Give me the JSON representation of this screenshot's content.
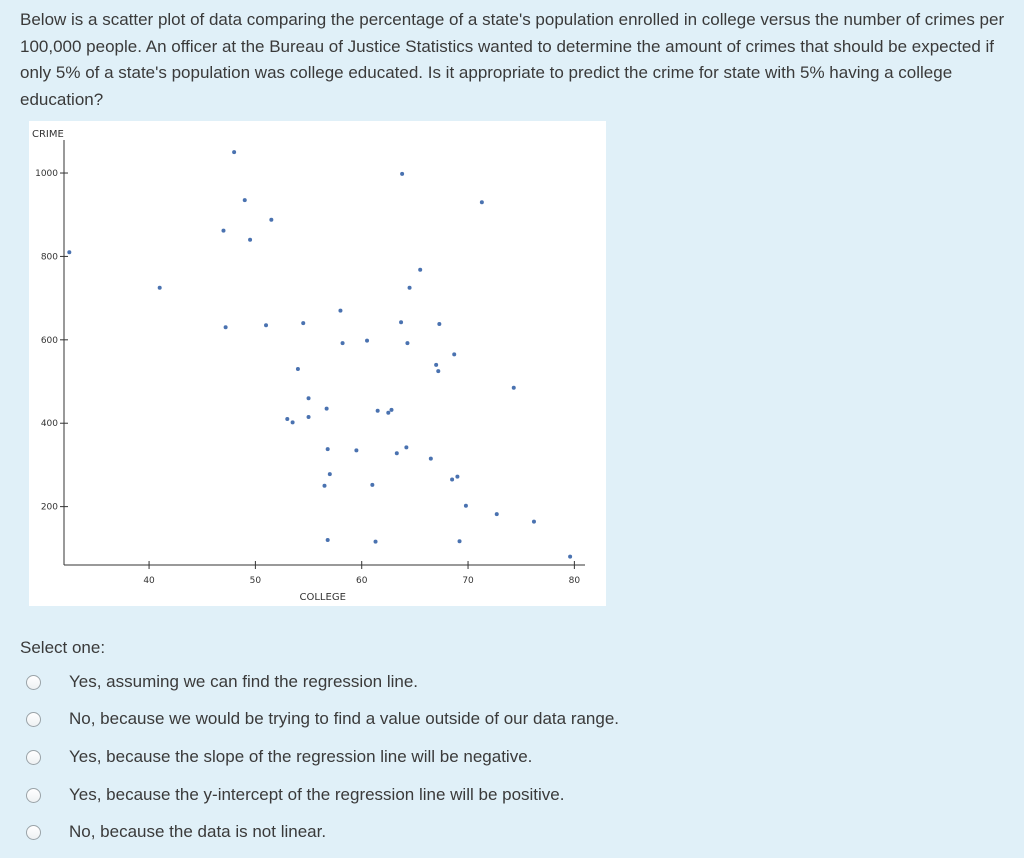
{
  "question": {
    "text": "Below is a scatter plot of data comparing the percentage of a state's population enrolled in college versus the number of crimes per 100,000 people. An officer at the Bureau of Justice Statistics wanted to determine the amount of crimes that should be expected if only 5% of a state's population was college educated. Is it appropriate to predict the crime for state with 5% having a college education?"
  },
  "chart_data": {
    "type": "scatter",
    "xlabel": "COLLEGE",
    "ylabel": "CRIME",
    "xlim": [
      32,
      81
    ],
    "ylim": [
      60,
      1060
    ],
    "x_ticks": [
      40,
      50,
      60,
      70,
      80
    ],
    "y_ticks": [
      200,
      400,
      600,
      800,
      1000
    ],
    "grid": false,
    "point_color": "#4a72b0",
    "points": [
      [
        32.5,
        810
      ],
      [
        41,
        725
      ],
      [
        47,
        862
      ],
      [
        47.2,
        630
      ],
      [
        48,
        1050
      ],
      [
        49,
        935
      ],
      [
        49.5,
        840
      ],
      [
        51,
        635
      ],
      [
        51.5,
        888
      ],
      [
        53,
        410
      ],
      [
        53.5,
        402
      ],
      [
        54,
        530
      ],
      [
        54.5,
        640
      ],
      [
        55,
        460
      ],
      [
        55,
        415
      ],
      [
        56.5,
        250
      ],
      [
        56.7,
        435
      ],
      [
        56.8,
        338
      ],
      [
        56.8,
        120
      ],
      [
        57,
        278
      ],
      [
        58,
        670
      ],
      [
        58.2,
        592
      ],
      [
        59.5,
        335
      ],
      [
        60.5,
        598
      ],
      [
        61,
        252
      ],
      [
        61.3,
        116
      ],
      [
        61.5,
        430
      ],
      [
        62.5,
        425
      ],
      [
        62.8,
        432
      ],
      [
        63.3,
        328
      ],
      [
        63.7,
        642
      ],
      [
        63.8,
        998
      ],
      [
        64.2,
        342
      ],
      [
        64.3,
        592
      ],
      [
        64.5,
        725
      ],
      [
        65.5,
        768
      ],
      [
        66.5,
        315
      ],
      [
        67,
        540
      ],
      [
        67.2,
        525
      ],
      [
        67.3,
        638
      ],
      [
        68.5,
        265
      ],
      [
        68.7,
        565
      ],
      [
        69,
        272
      ],
      [
        69.2,
        117
      ],
      [
        69.8,
        202
      ],
      [
        71.3,
        930
      ],
      [
        72.7,
        182
      ],
      [
        74.3,
        485
      ],
      [
        76.2,
        164
      ],
      [
        79.6,
        80
      ]
    ]
  },
  "select_one_label": "Select one:",
  "options": [
    {
      "label": "Yes, assuming we can find the regression line."
    },
    {
      "label": "No, because we would be trying to find a value outside of our data range."
    },
    {
      "label": "Yes, because the slope of the regression line will be negative."
    },
    {
      "label": "Yes, because the y-intercept of the regression line will be positive."
    },
    {
      "label": "No, because the data is not linear."
    }
  ]
}
